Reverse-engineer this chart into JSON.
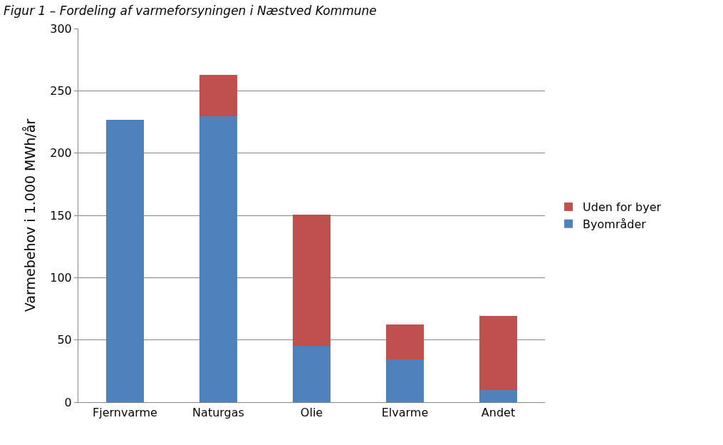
{
  "chart_data": {
    "type": "bar",
    "title": "Figur 1 – Fordeling af varmeforsyningen i Næstved Kommune",
    "ylabel": "Varmebehov i 1.000 MWh/år",
    "categories": [
      "Fjernvarme",
      "Naturgas",
      "Olie",
      "Elvarme",
      "Andet"
    ],
    "stacked": true,
    "series": [
      {
        "name": "Byområder",
        "color": "#4f81bd",
        "values": [
          227,
          229.5,
          45,
          34.5,
          9.5
        ]
      },
      {
        "name": "Uden for byer",
        "color": "#c0504d",
        "values": [
          0,
          33.5,
          105.5,
          28,
          60
        ]
      }
    ],
    "ylim": [
      0,
      300
    ],
    "yticks": [
      0,
      50,
      100,
      150,
      200,
      250,
      300
    ],
    "grid": "y",
    "legend": "right"
  }
}
